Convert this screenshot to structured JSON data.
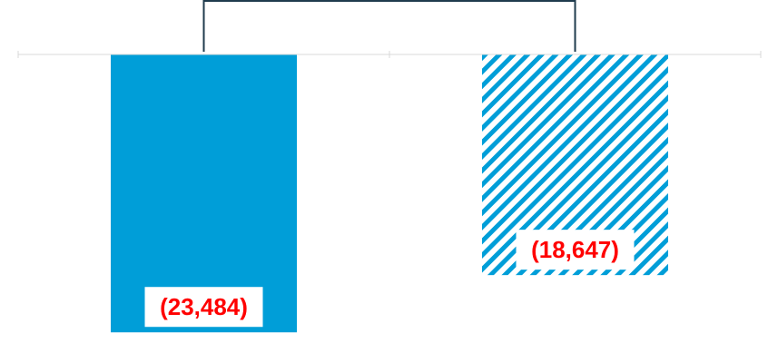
{
  "chart_data": {
    "type": "bar",
    "categories": [
      "",
      ""
    ],
    "values": [
      -23484,
      -18647
    ],
    "value_labels": [
      "(23,484)",
      "(18,647)"
    ],
    "title": "",
    "xlabel": "",
    "ylabel": "",
    "ylim": [
      -25000,
      0
    ],
    "grid": false,
    "legend": "none",
    "bar_styles": [
      "solid",
      "hatched"
    ],
    "colors": {
      "bar": "#009ed8",
      "label_text": "#ff0000",
      "label_bg": "#ffffff",
      "baseline": "#d9d9d9",
      "bracket": "#1f3b4d"
    }
  }
}
